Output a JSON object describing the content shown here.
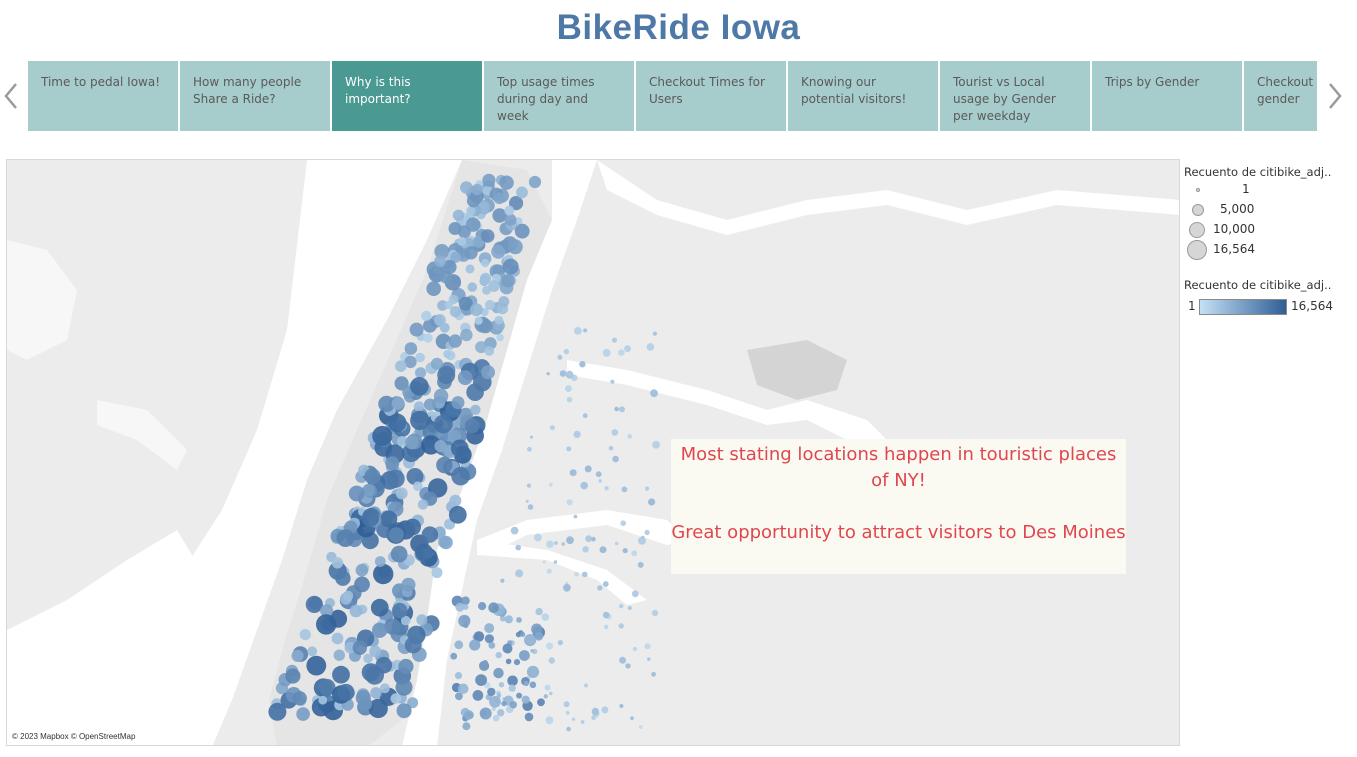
{
  "dashboard": {
    "title": "BikeRide Iowa"
  },
  "story": {
    "points": [
      {
        "label": "Time to pedal Iowa!",
        "active": false
      },
      {
        "label": "How many people Share a Ride?",
        "active": false
      },
      {
        "label": "Why is this important?",
        "active": true
      },
      {
        "label": "Top usage times during day and week",
        "active": false
      },
      {
        "label": "Checkout Times for Users",
        "active": false
      },
      {
        "label": "Knowing our potential visitors!",
        "active": false
      },
      {
        "label": "Tourist vs Local usage by Gender per weekday",
        "active": false
      },
      {
        "label": "Trips by Gender",
        "active": false
      },
      {
        "label": "Checkout times by gender",
        "active": false
      }
    ],
    "prev_icon": "chevron-left-icon",
    "next_icon": "chevron-right-icon"
  },
  "map": {
    "attribution": "© 2023 Mapbox © OpenStreetMap",
    "annotation": {
      "line1": "Most stating locations happen in touristic places of NY!",
      "line2": "Great opportunity to attract visitors to Des Moines"
    }
  },
  "legend": {
    "size_title": "Recuento de citibike_adj..",
    "size_values": [
      "1",
      "5,000",
      "10,000",
      "16,564"
    ],
    "color_title": "Recuento de citibike_adj..",
    "color_min": "1",
    "color_max": "16,564",
    "color_low": "#c4e0f4",
    "color_high": "#2f5e96"
  },
  "colors": {
    "title": "#4e79a7",
    "tab": "#a7cccc",
    "tab_active": "#4a9992",
    "annotation_text": "#e0464e",
    "water": "#ffffff",
    "land": "#ececec"
  }
}
